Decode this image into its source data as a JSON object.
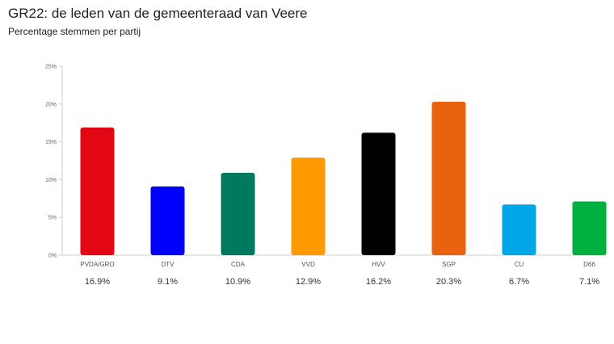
{
  "chart_data": {
    "type": "bar",
    "title": "GR22: de leden van de gemeenteraad van Veere",
    "subtitle": "Percentage stemmen per partij",
    "xlabel": "",
    "ylabel": "",
    "ylim": [
      0,
      25
    ],
    "yticks": [
      0,
      5,
      10,
      15,
      20,
      25
    ],
    "ytick_labels": [
      "0%",
      "5%",
      "10%",
      "15%",
      "20%",
      "25%"
    ],
    "categories": [
      "PVDA/GRO",
      "DTV",
      "CDA",
      "VVD",
      "HVV",
      "SGP",
      "CU",
      "D66"
    ],
    "values": [
      16.9,
      9.1,
      10.9,
      12.9,
      16.2,
      20.3,
      6.7,
      7.1
    ],
    "value_labels": [
      "16.9%",
      "9.1%",
      "10.9%",
      "12.9%",
      "16.2%",
      "20.3%",
      "6.7%",
      "7.1%"
    ],
    "colors": [
      "#e30613",
      "#0000ff",
      "#007a5e",
      "#ff9900",
      "#000000",
      "#e8620f",
      "#00a6e6",
      "#00b140"
    ],
    "grid": false,
    "legend": "none"
  }
}
